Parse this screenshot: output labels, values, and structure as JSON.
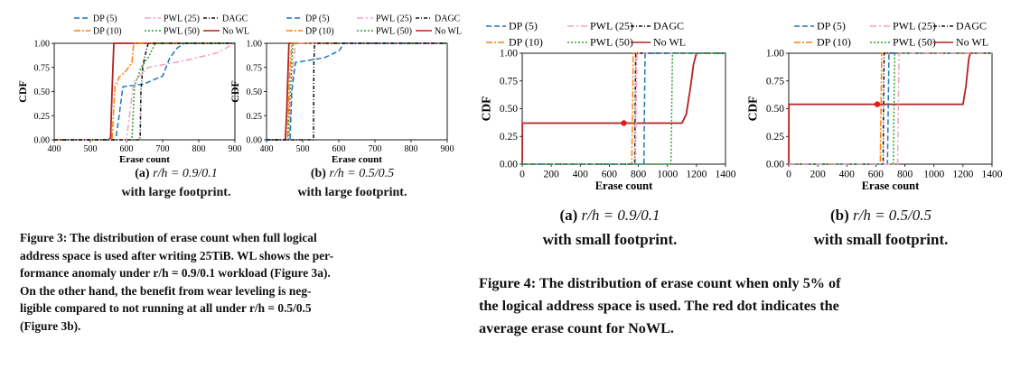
{
  "colors": {
    "DP (5)": "#1f77b4",
    "PWL (25)": "#f5a0c0",
    "DAGC": "#111111",
    "DP (10)": "#ff7f0e",
    "PWL (50)": "#2ca02c",
    "No WL": "#b22222"
  },
  "legend_entries": [
    "DP (5)",
    "PWL (25)",
    "DAGC",
    "DP (10)",
    "PWL (50)",
    "No WL"
  ],
  "chart_data": [
    {
      "type": "line",
      "xlabel": "Erase count",
      "ylabel": "CDF",
      "xlim": [
        400,
        900
      ],
      "ylim": [
        0,
        1
      ],
      "xticks": [
        "400",
        "500",
        "600",
        "700",
        "800",
        "900"
      ],
      "yticks": [
        "0.00",
        "0.25",
        "0.50",
        "0.75",
        "1.00"
      ],
      "legend": "top",
      "series": [
        {
          "name": "No WL",
          "points": [
            [
              400,
              0
            ],
            [
              550,
              0
            ],
            [
              556,
              0.02
            ],
            [
              560,
              0.5
            ],
            [
              565,
              1
            ],
            [
              900,
              1
            ]
          ]
        },
        {
          "name": "DP (10)",
          "points": [
            [
              400,
              0
            ],
            [
              560,
              0
            ],
            [
              568,
              0.55
            ],
            [
              580,
              0.65
            ],
            [
              600,
              0.72
            ],
            [
              615,
              0.8
            ],
            [
              620,
              1
            ],
            [
              900,
              1
            ]
          ]
        },
        {
          "name": "DP (5)",
          "points": [
            [
              400,
              0
            ],
            [
              570,
              0
            ],
            [
              578,
              0.2
            ],
            [
              590,
              0.55
            ],
            [
              650,
              0.58
            ],
            [
              680,
              0.63
            ],
            [
              700,
              0.66
            ],
            [
              720,
              0.85
            ],
            [
              740,
              0.95
            ],
            [
              760,
              1
            ],
            [
              900,
              1
            ]
          ]
        },
        {
          "name": "PWL (50)",
          "points": [
            [
              400,
              0
            ],
            [
              615,
              0
            ],
            [
              622,
              0.55
            ],
            [
              640,
              0.75
            ],
            [
              660,
              0.85
            ],
            [
              680,
              1
            ],
            [
              900,
              1
            ]
          ]
        },
        {
          "name": "PWL (25)",
          "points": [
            [
              400,
              0
            ],
            [
              600,
              0
            ],
            [
              620,
              0.6
            ],
            [
              660,
              0.75
            ],
            [
              760,
              0.82
            ],
            [
              850,
              0.9
            ],
            [
              900,
              1
            ]
          ]
        },
        {
          "name": "DAGC",
          "points": [
            [
              400,
              0
            ],
            [
              636,
              0
            ],
            [
              638,
              0.05
            ],
            [
              640,
              0.5
            ],
            [
              645,
              0.75
            ],
            [
              650,
              0.85
            ],
            [
              660,
              1
            ],
            [
              900,
              1
            ]
          ]
        }
      ]
    },
    {
      "type": "line",
      "xlabel": "Erase count",
      "ylabel": "CDF",
      "xlim": [
        400,
        900
      ],
      "ylim": [
        0,
        1
      ],
      "xticks": [
        "400",
        "500",
        "600",
        "700",
        "800",
        "900"
      ],
      "yticks": [
        "0.00",
        "0.25",
        "0.50",
        "0.75",
        "1.00"
      ],
      "legend": "top",
      "series": [
        {
          "name": "No WL",
          "points": [
            [
              400,
              0
            ],
            [
              452,
              0
            ],
            [
              456,
              0.3
            ],
            [
              462,
              1
            ],
            [
              900,
              1
            ]
          ]
        },
        {
          "name": "DP (10)",
          "points": [
            [
              400,
              0
            ],
            [
              458,
              0
            ],
            [
              463,
              0.6
            ],
            [
              470,
              1
            ],
            [
              900,
              1
            ]
          ]
        },
        {
          "name": "PWL (50)",
          "points": [
            [
              400,
              0
            ],
            [
              460,
              0
            ],
            [
              466,
              0.5
            ],
            [
              473,
              1
            ],
            [
              900,
              1
            ]
          ]
        },
        {
          "name": "PWL (25)",
          "points": [
            [
              400,
              0
            ],
            [
              462,
              0
            ],
            [
              470,
              0.6
            ],
            [
              480,
              1
            ],
            [
              900,
              1
            ]
          ]
        },
        {
          "name": "DP (5)",
          "points": [
            [
              400,
              0
            ],
            [
              465,
              0
            ],
            [
              470,
              0.5
            ],
            [
              480,
              0.8
            ],
            [
              560,
              0.85
            ],
            [
              600,
              0.92
            ],
            [
              615,
              1
            ],
            [
              900,
              1
            ]
          ]
        },
        {
          "name": "DAGC",
          "points": [
            [
              400,
              0
            ],
            [
              530,
              0
            ],
            [
              531,
              0.8
            ],
            [
              533,
              1
            ],
            [
              900,
              1
            ]
          ]
        }
      ]
    },
    {
      "type": "line",
      "xlabel": "Erase count",
      "ylabel": "CDF",
      "xlim": [
        0,
        1400
      ],
      "ylim": [
        0,
        1
      ],
      "xticks": [
        "0",
        "200",
        "400",
        "600",
        "800",
        "1000",
        "1200",
        "1400"
      ],
      "yticks": [
        "0.00",
        "0.25",
        "0.50",
        "0.75",
        "1.00"
      ],
      "legend": "top",
      "mean_marker": {
        "x": 700,
        "y": 0.37
      },
      "series": [
        {
          "name": "No WL",
          "points": [
            [
              0,
              0
            ],
            [
              1,
              0.37
            ],
            [
              1100,
              0.37
            ],
            [
              1130,
              0.45
            ],
            [
              1160,
              0.7
            ],
            [
              1180,
              0.9
            ],
            [
              1200,
              1
            ],
            [
              1400,
              1
            ]
          ]
        },
        {
          "name": "DP (10)",
          "points": [
            [
              0,
              0
            ],
            [
              755,
              0
            ],
            [
              760,
              0.5
            ],
            [
              765,
              1
            ],
            [
              1400,
              1
            ]
          ]
        },
        {
          "name": "DAGC",
          "points": [
            [
              0,
              0
            ],
            [
              775,
              0
            ],
            [
              778,
              0.5
            ],
            [
              782,
              1
            ],
            [
              1400,
              1
            ]
          ]
        },
        {
          "name": "PWL (25)",
          "points": [
            [
              0,
              0
            ],
            [
              780,
              0
            ],
            [
              784,
              0.5
            ],
            [
              790,
              1
            ],
            [
              1400,
              1
            ]
          ]
        },
        {
          "name": "DP (5)",
          "points": [
            [
              0,
              0
            ],
            [
              838,
              0
            ],
            [
              842,
              0.5
            ],
            [
              846,
              1
            ],
            [
              1400,
              1
            ]
          ]
        },
        {
          "name": "PWL (50)",
          "points": [
            [
              0,
              0
            ],
            [
              1025,
              0
            ],
            [
              1030,
              0.5
            ],
            [
              1035,
              1
            ],
            [
              1400,
              1
            ]
          ]
        }
      ]
    },
    {
      "type": "line",
      "xlabel": "Erase count",
      "ylabel": "CDF",
      "xlim": [
        0,
        1400
      ],
      "ylim": [
        0,
        1
      ],
      "xticks": [
        "0",
        "200",
        "400",
        "600",
        "800",
        "1000",
        "1200",
        "1400"
      ],
      "yticks": [
        "0.00",
        "0.25",
        "0.50",
        "0.75",
        "1.00"
      ],
      "legend": "top",
      "mean_marker": {
        "x": 610,
        "y": 0.54
      },
      "series": [
        {
          "name": "No WL",
          "points": [
            [
              0,
              0
            ],
            [
              1,
              0.54
            ],
            [
              1200,
              0.54
            ],
            [
              1220,
              0.7
            ],
            [
              1240,
              0.95
            ],
            [
              1250,
              1
            ],
            [
              1400,
              1
            ]
          ]
        },
        {
          "name": "DP (10)",
          "points": [
            [
              0,
              0
            ],
            [
              630,
              0
            ],
            [
              635,
              0.5
            ],
            [
              640,
              1
            ],
            [
              1400,
              1
            ]
          ]
        },
        {
          "name": "DAGC",
          "points": [
            [
              0,
              0
            ],
            [
              650,
              0
            ],
            [
              653,
              0.5
            ],
            [
              657,
              1
            ],
            [
              1400,
              1
            ]
          ]
        },
        {
          "name": "DP (5)",
          "points": [
            [
              0,
              0
            ],
            [
              680,
              0
            ],
            [
              685,
              0.5
            ],
            [
              690,
              1
            ],
            [
              1400,
              1
            ]
          ]
        },
        {
          "name": "PWL (50)",
          "points": [
            [
              0,
              0
            ],
            [
              720,
              0
            ],
            [
              725,
              0.5
            ],
            [
              730,
              1
            ],
            [
              1400,
              1
            ]
          ]
        },
        {
          "name": "PWL (25)",
          "points": [
            [
              0,
              0
            ],
            [
              750,
              0
            ],
            [
              755,
              0.5
            ],
            [
              760,
              1
            ],
            [
              1400,
              1
            ]
          ]
        }
      ]
    }
  ],
  "subcaptions": [
    {
      "letter": "(a)",
      "ratio": "r/h = 0.9/0.1",
      "line2": "with large footprint."
    },
    {
      "letter": "(b)",
      "ratio": "r/h = 0.5/0.5",
      "line2": "with large footprint."
    },
    {
      "letter": "(a)",
      "ratio": "r/h = 0.9/0.1",
      "line2": "with small footprint."
    },
    {
      "letter": "(b)",
      "ratio": "r/h = 0.5/0.5",
      "line2": "with small footprint."
    }
  ],
  "figure3_caption": {
    "line1": "Figure 3: The distribution of erase count when full logical",
    "line2": "address space is used after writing 25TiB. WL shows the per-",
    "line3": "formance anomaly under r/h = 0.9/0.1 workload (Figure 3a).",
    "line4": "On the other hand, the benefit from wear leveling is neg-",
    "line5": "ligible compared to not running at all under r/h = 0.5/0.5",
    "line6": "(Figure 3b)."
  },
  "figure4_caption": {
    "line1": "Figure 4: The distribution of erase count when only 5% of",
    "line2": "the logical address space is used. The red dot indicates the",
    "line3": "average erase count for NoWL."
  }
}
